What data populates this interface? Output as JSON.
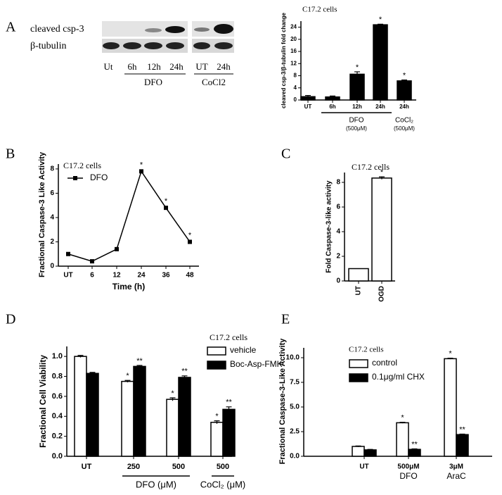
{
  "panel_letters": [
    "A",
    "B",
    "C",
    "D",
    "E"
  ],
  "blot": {
    "rows": [
      "cleaved csp-3",
      "β-tubulin"
    ],
    "lanes": [
      "Ut",
      "6h",
      "12h",
      "24h",
      "UT",
      "24h"
    ],
    "groups": [
      "DFO",
      "CoCl2"
    ]
  },
  "chart_data": [
    {
      "type": "bar",
      "title": "C17.2 cells",
      "y_label": "cleaved csp-3/β-tubulin fold change",
      "categories": [
        "UT",
        "6h",
        "12h",
        "24h",
        "24h"
      ],
      "values": [
        1.1,
        1.0,
        8.5,
        24.8,
        6.3
      ],
      "errors": [
        0.4,
        0.3,
        0.8,
        0.2,
        0.3
      ],
      "significance": [
        null,
        null,
        "*",
        "*",
        "*"
      ],
      "color": "#000000",
      "groups": [
        {
          "label": "DFO",
          "note": "(500μM)"
        },
        {
          "label": "CoCl₂",
          "note": "(500μM)"
        }
      ],
      "ylim": [
        0,
        26
      ],
      "yticks": [
        0,
        4,
        8,
        12,
        16,
        20,
        24
      ]
    },
    {
      "type": "line",
      "title": "C17.2 cells",
      "x_label": "Time (h)",
      "y_label": "Fractional Caspase-3 Like Activity",
      "categories": [
        "UT",
        "6",
        "12",
        "24",
        "36",
        "48"
      ],
      "series": [
        {
          "name": "DFO",
          "color": "#000000",
          "values": [
            1.0,
            0.4,
            1.4,
            7.8,
            4.8,
            2.0
          ],
          "significance": [
            null,
            null,
            null,
            "*",
            "*",
            "*"
          ]
        }
      ],
      "ylim": [
        0,
        8.4
      ],
      "yticks": [
        0,
        2,
        4,
        6,
        8
      ]
    },
    {
      "type": "bar",
      "title": "C17.2 cells",
      "y_label": "Fold Caspase-3-like activity",
      "categories": [
        "UT",
        "OGD"
      ],
      "values": [
        1.0,
        8.35
      ],
      "errors": [
        null,
        0.1
      ],
      "significance": [
        null,
        "*"
      ],
      "color": "#ffffff",
      "ylim": [
        0,
        8.8
      ],
      "yticks": [
        0,
        2,
        4,
        6,
        8
      ]
    },
    {
      "type": "bar",
      "title": "C17.2 cells",
      "y_label": "Fractional Cell Viability",
      "categories": [
        "UT",
        "250",
        "500",
        "500"
      ],
      "series": [
        {
          "name": "vehicle",
          "color": "#ffffff",
          "values": [
            1.0,
            0.75,
            0.57,
            0.34
          ],
          "errors": [
            0.01,
            0.01,
            0.015,
            0.015
          ],
          "significance": [
            null,
            "*",
            "*",
            "*"
          ]
        },
        {
          "name": "Boc-Asp-FMK",
          "color": "#000000",
          "values": [
            0.83,
            0.9,
            0.79,
            0.47
          ],
          "errors": [
            0.01,
            0.01,
            0.015,
            0.025
          ],
          "significance": [
            null,
            "**",
            "**",
            "**"
          ]
        }
      ],
      "groups": [
        {
          "label": "DFO (μM)"
        },
        {
          "label": "CoCl₂ (μM)"
        }
      ],
      "ylim": [
        0,
        1.1
      ],
      "yticks": [
        {
          "value": 0,
          "label": "0.0"
        },
        0.2,
        0.4,
        0.6,
        0.8,
        {
          "value": 1,
          "label": "1.0"
        }
      ]
    },
    {
      "type": "bar",
      "title": "C17.2 cells",
      "y_label": "Fractional Caspase-3-Like Activity",
      "categories": [
        "UT",
        "500μM",
        "3μM"
      ],
      "series": [
        {
          "name": "control",
          "color": "#ffffff",
          "values": [
            1.0,
            3.4,
            9.9
          ],
          "errors": [
            0.05,
            0.05,
            0.05
          ],
          "significance": [
            null,
            "*",
            "*"
          ]
        },
        {
          "name": "0.1μg/ml CHX",
          "color": "#000000",
          "values": [
            0.65,
            0.7,
            2.2
          ],
          "errors": [
            0.05,
            0.05,
            0.05
          ],
          "significance": [
            null,
            "**",
            "**"
          ]
        }
      ],
      "groups": [
        {
          "label": "DFO"
        },
        {
          "label": "AraC"
        }
      ],
      "ylim": [
        0,
        11
      ],
      "yticks": [
        {
          "value": 0,
          "label": "0.0"
        },
        2.5,
        {
          "value": 5,
          "label": "5.0"
        },
        7.5,
        {
          "value": 10,
          "label": "10.0"
        }
      ]
    }
  ]
}
